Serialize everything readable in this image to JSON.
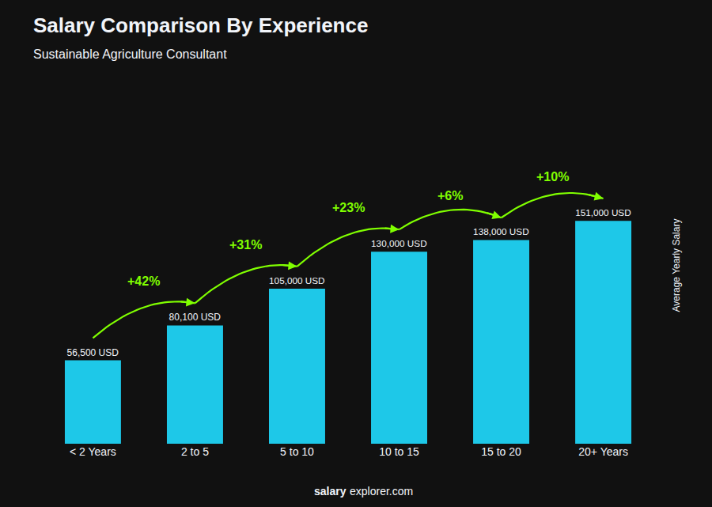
{
  "chart_data": {
    "type": "bar",
    "title": "Salary Comparison By Experience",
    "subtitle": "Sustainable Agriculture Consultant",
    "categories": [
      "< 2 Years",
      "2 to 5",
      "5 to 10",
      "10 to 15",
      "15 to 20",
      "20+ Years"
    ],
    "values": [
      56500,
      80100,
      105000,
      130000,
      138000,
      151000
    ],
    "value_labels": [
      "56,500 USD",
      "80,100 USD",
      "105,000 USD",
      "130,000 USD",
      "138,000 USD",
      "151,000 USD"
    ],
    "data_labels": true,
    "color": "#1EC8E8",
    "ylabel": "Average Yearly Salary",
    "ylim": [
      0,
      241600
    ],
    "yticks": [],
    "tick_labels": "x",
    "grid": false,
    "annotations": [
      {
        "text": "+42%",
        "color": "#80FF00"
      },
      {
        "text": "+31%",
        "color": "#80FF00"
      },
      {
        "text": "+23%",
        "color": "#80FF00"
      },
      {
        "text": "+6%",
        "color": "#80FF00"
      },
      {
        "text": "+10%",
        "color": "#80FF00"
      }
    ],
    "footer": [
      "salary",
      "explorer.com"
    ]
  }
}
